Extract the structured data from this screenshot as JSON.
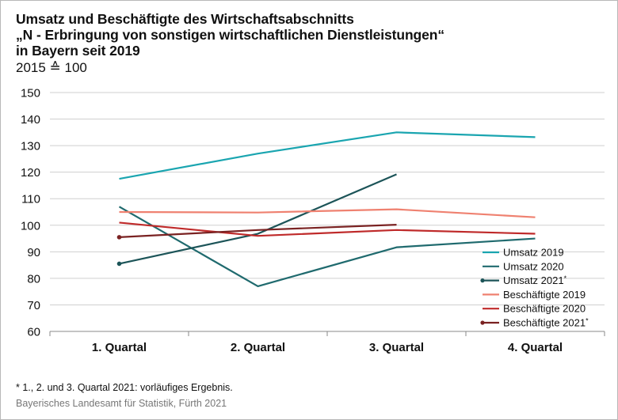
{
  "title_lines": [
    "Umsatz und Beschäftigte des Wirtschaftsabschnitts",
    "„N - Erbringung von sonstigen wirtschaftlichen Dienstleistungen“",
    "in Bayern seit 2019"
  ],
  "subtitle": "2015 ≙ 100",
  "footnote": "*  1., 2. und 3. Quartal 2021: vorläufiges Ergebnis.",
  "source": "Bayerisches Landesamt für Statistik, Fürth 2021",
  "chart_data": {
    "type": "line",
    "categories": [
      "1. Quartal",
      "2. Quartal",
      "3. Quartal",
      "4. Quartal"
    ],
    "ylim": [
      60,
      150
    ],
    "yticks": [
      60,
      70,
      80,
      90,
      100,
      110,
      120,
      130,
      140,
      150
    ],
    "grid": true,
    "legend_position": "bottom-right",
    "series": [
      {
        "name": "Umsatz 2019",
        "color": "#1aa5b0",
        "marker": false,
        "values": [
          117.5,
          127,
          135,
          133.2
        ]
      },
      {
        "name": "Umsatz 2020",
        "color": "#1f6a6e",
        "marker": false,
        "values": [
          107,
          77,
          91.7,
          95
        ]
      },
      {
        "name": "Umsatz 2021*",
        "color": "#1c5458",
        "marker": true,
        "values": [
          85.5,
          96.8,
          119.2,
          null
        ]
      },
      {
        "name": "Beschäftigte 2019",
        "color": "#ef8170",
        "marker": false,
        "values": [
          105,
          104.8,
          106,
          103
        ]
      },
      {
        "name": "Beschäftigte 2020",
        "color": "#bf2a2a",
        "marker": false,
        "values": [
          101,
          96,
          98.2,
          96.8
        ]
      },
      {
        "name": "Beschäftigte 2021*",
        "color": "#7a2222",
        "marker": true,
        "values": [
          95.5,
          98.2,
          100.2,
          null
        ]
      }
    ]
  }
}
